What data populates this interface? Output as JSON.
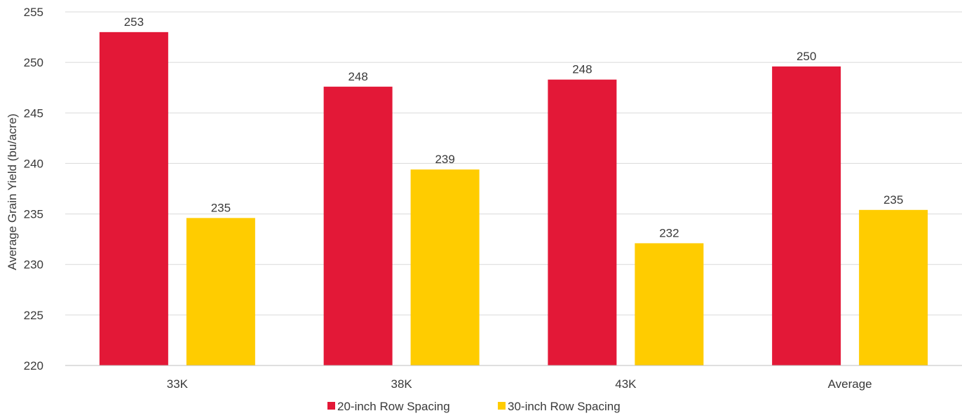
{
  "chart_data": {
    "type": "bar",
    "title": "",
    "xlabel": "",
    "ylabel": "Average Grain Yield (bu/acre)",
    "categories": [
      "33K",
      "38K",
      "43K",
      "Average"
    ],
    "ylim": [
      220,
      255
    ],
    "yticks": [
      220,
      225,
      230,
      235,
      240,
      245,
      250,
      255
    ],
    "grid": true,
    "legend_position": "bottom",
    "series": [
      {
        "name": "20-inch Row Spacing",
        "color": "#e31837",
        "values": [
          253.0,
          247.6,
          248.3,
          249.6
        ],
        "labels": [
          "253",
          "248",
          "248",
          "250"
        ]
      },
      {
        "name": "30-inch Row Spacing",
        "color": "#ffcc00",
        "values": [
          234.6,
          239.4,
          232.1,
          235.4
        ],
        "labels": [
          "235",
          "239",
          "232",
          "235"
        ]
      }
    ]
  }
}
